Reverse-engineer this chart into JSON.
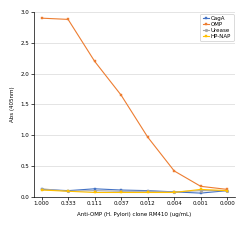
{
  "x_labels": [
    "1.000",
    "0.333",
    "0.111",
    "0.037",
    "0.012",
    "0.004",
    "0.001",
    "0.000"
  ],
  "x_values": [
    0,
    1,
    2,
    3,
    4,
    5,
    6,
    7
  ],
  "series": [
    {
      "name": "CagA",
      "color": "#4472C4",
      "marker": "s",
      "markersize": 2.0,
      "linewidth": 0.8,
      "values": [
        0.12,
        0.1,
        0.13,
        0.11,
        0.1,
        0.08,
        0.06,
        0.1
      ]
    },
    {
      "name": "OMP",
      "color": "#ED7D31",
      "marker": "s",
      "markersize": 2.0,
      "linewidth": 0.8,
      "values": [
        2.9,
        2.88,
        2.2,
        1.65,
        0.97,
        0.42,
        0.17,
        0.12
      ]
    },
    {
      "name": "Urease",
      "color": "#A5A5A5",
      "marker": "o",
      "markersize": 2.0,
      "linewidth": 0.8,
      "values": [
        0.13,
        0.09,
        0.1,
        0.09,
        0.09,
        0.08,
        0.1,
        0.1
      ]
    },
    {
      "name": "HP-NAP",
      "color": "#FFC000",
      "marker": "s",
      "markersize": 2.0,
      "linewidth": 0.8,
      "values": [
        0.11,
        0.09,
        0.07,
        0.07,
        0.07,
        0.07,
        0.12,
        0.1
      ]
    }
  ],
  "ylabel": "Abs (405nm)",
  "xlabel": "Anti-OMP (H. Pylori) clone RM410 (ug/mL)",
  "ylim": [
    0.0,
    3.0
  ],
  "yticks": [
    0.0,
    0.5,
    1.0,
    1.5,
    2.0,
    2.5,
    3.0
  ],
  "background_color": "#FFFFFF",
  "plot_bg_color": "#FFFFFF",
  "grid_color": "#D9D9D9",
  "label_fontsize": 4.0,
  "tick_fontsize": 4.0,
  "legend_fontsize": 4.0
}
